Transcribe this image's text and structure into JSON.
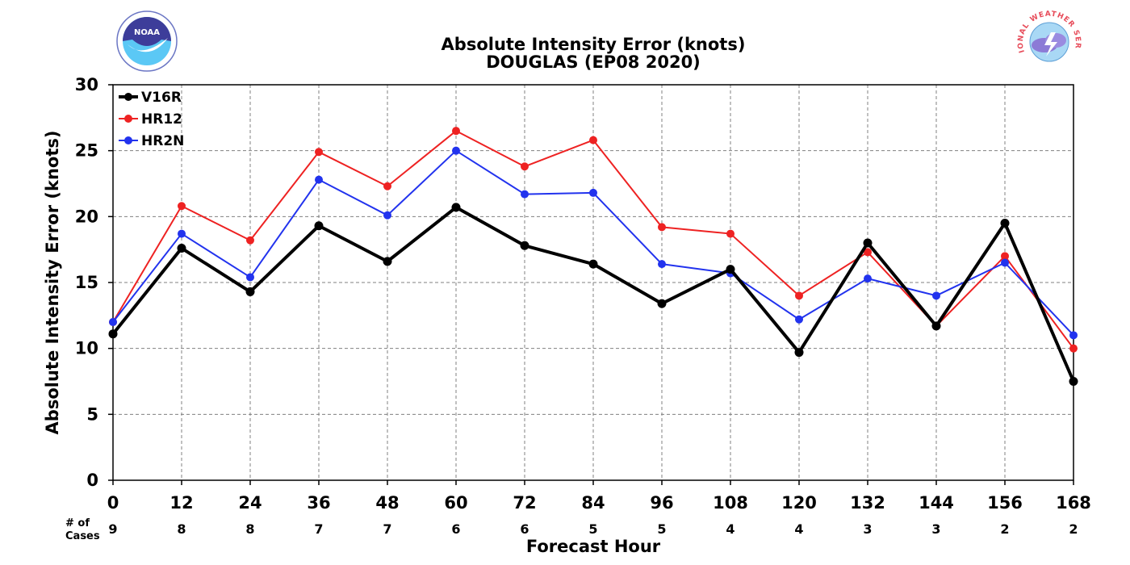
{
  "chart_data": {
    "type": "line",
    "title": "Absolute Intensity Error (knots)",
    "subtitle": "DOUGLAS (EP08 2020)",
    "xlabel": "Forecast Hour",
    "ylabel": "Absolute Intensity Error (knots)",
    "xlim": [
      0,
      168
    ],
    "ylim": [
      0,
      30
    ],
    "x_ticks": [
      0,
      12,
      24,
      36,
      48,
      60,
      72,
      84,
      96,
      108,
      120,
      132,
      144,
      156,
      168
    ],
    "y_ticks": [
      0,
      5,
      10,
      15,
      20,
      25,
      30
    ],
    "grid": true,
    "legend_position": "top-left",
    "cases_label": "# of\nCases",
    "cases": [
      9,
      8,
      8,
      7,
      7,
      6,
      6,
      5,
      5,
      4,
      4,
      3,
      3,
      2,
      2
    ],
    "series": [
      {
        "name": "V16R",
        "color": "#000000",
        "width": 4,
        "values": [
          11.1,
          17.6,
          14.3,
          19.3,
          16.6,
          20.7,
          17.8,
          16.4,
          13.4,
          16.0,
          9.7,
          18.0,
          11.7,
          19.5,
          7.5
        ]
      },
      {
        "name": "HR12",
        "color": "#ee2222",
        "width": 2,
        "values": [
          12.0,
          20.8,
          18.2,
          24.9,
          22.3,
          26.5,
          23.8,
          25.8,
          19.2,
          18.7,
          14.0,
          17.3,
          11.7,
          17.0,
          10.0
        ]
      },
      {
        "name": "HR2N",
        "color": "#2233ee",
        "width": 2,
        "values": [
          12.0,
          18.7,
          15.4,
          22.8,
          20.1,
          25.0,
          21.7,
          21.8,
          16.4,
          15.7,
          12.2,
          15.3,
          14.0,
          16.5,
          11.0
        ]
      }
    ]
  },
  "logos": {
    "left_icon": "noaa-logo",
    "left_text": "NOAA",
    "right_icon": "nws-logo",
    "right_text": "NATIONAL WEATHER SERVICE"
  }
}
